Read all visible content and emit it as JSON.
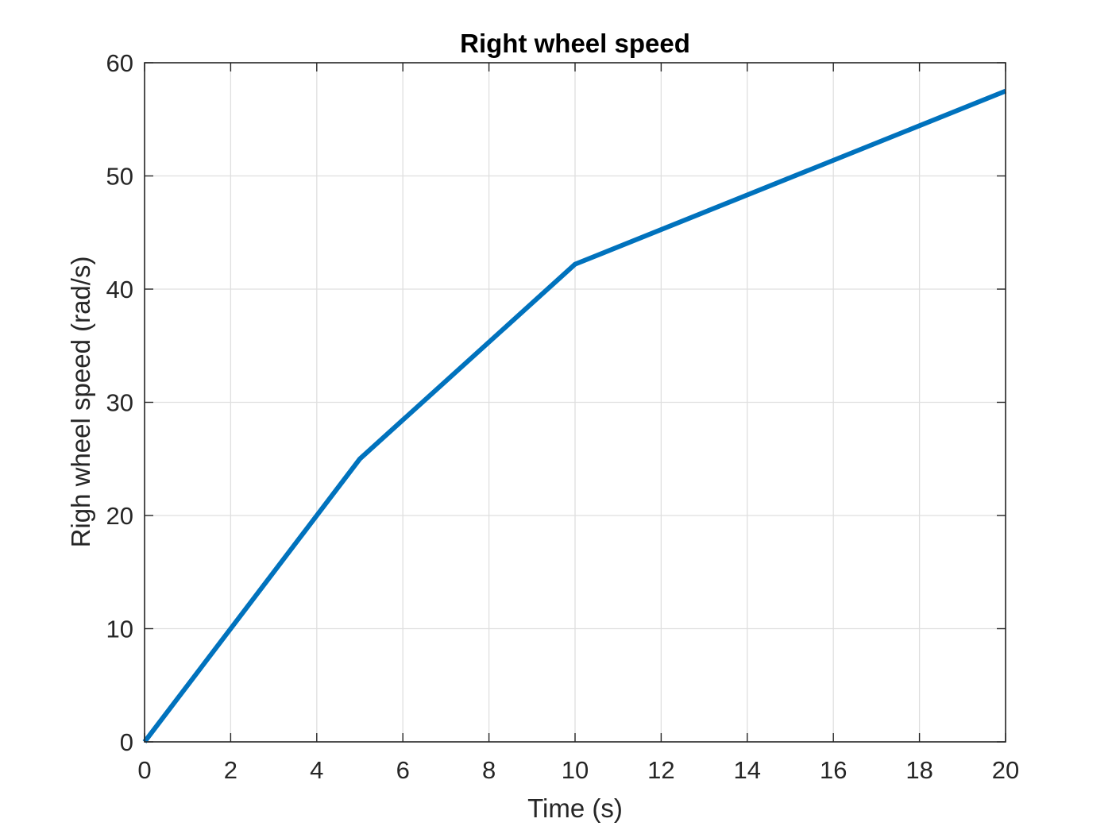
{
  "chart_data": {
    "type": "line",
    "title": "Right wheel speed",
    "xlabel": "Time (s)",
    "ylabel": "Righ wheel speed (rad/s)",
    "xlim": [
      0,
      20
    ],
    "ylim": [
      0,
      60
    ],
    "xticks": [
      "0",
      "2",
      "4",
      "6",
      "8",
      "10",
      "12",
      "14",
      "16",
      "18",
      "20"
    ],
    "yticks": [
      "0",
      "10",
      "20",
      "30",
      "40",
      "50",
      "60"
    ],
    "grid": true,
    "series": [
      {
        "color": "#0072BD",
        "x": [
          0,
          5,
          10,
          20
        ],
        "y": [
          0,
          25,
          42.2,
          57.5
        ]
      }
    ]
  }
}
